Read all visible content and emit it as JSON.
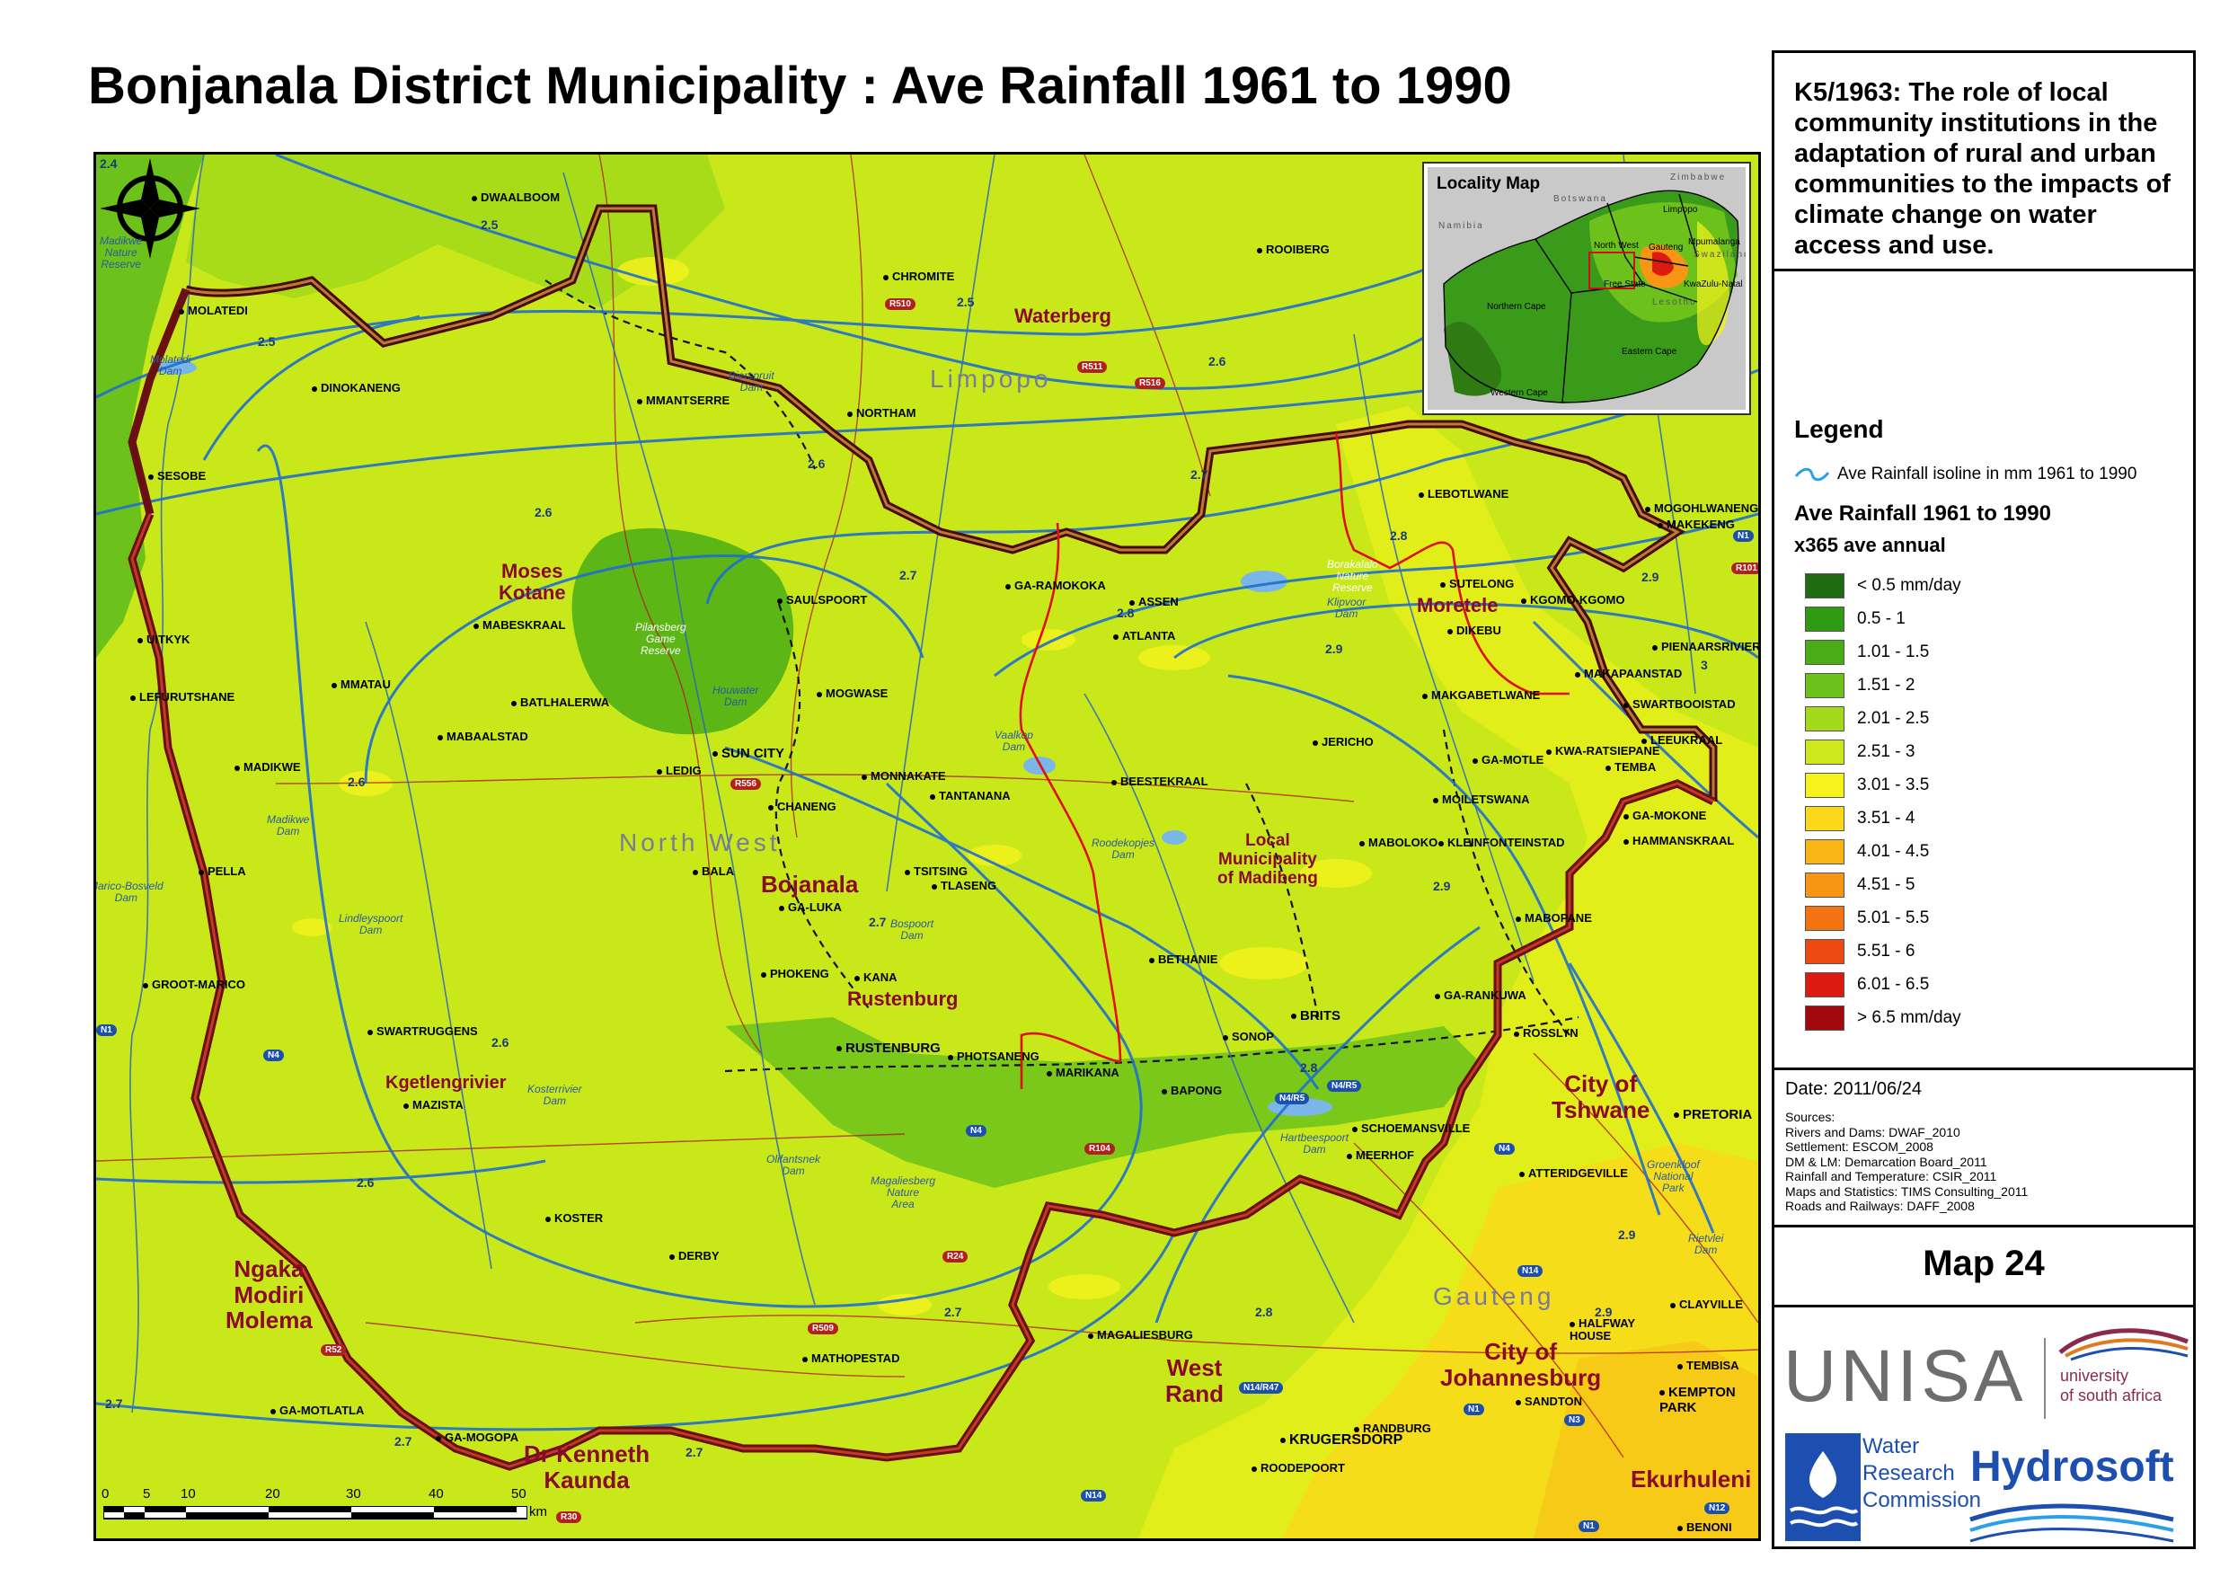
{
  "title": "Bonjanala District Municipality : Ave Rainfall 1961 to 1990",
  "project": "K5/1963: The role of local community institutions in the adaptation of rural and urban communities to the impacts of climate change on water access and use.",
  "legend": {
    "heading": "Legend",
    "isoline_label": "Ave Rainfall isoline in mm 1961 to 1990",
    "subtitle": "Ave Rainfall 1961 to 1990",
    "unit": "x365 ave annual",
    "classes": [
      {
        "label": "< 0.5 mm/day",
        "color": "#1f6b0f"
      },
      {
        "label": "0.5 - 1",
        "color": "#2f9a12"
      },
      {
        "label": "1.01 - 1.5",
        "color": "#48ad16"
      },
      {
        "label": "1.51 - 2",
        "color": "#6cc21a"
      },
      {
        "label": "2.01 - 2.5",
        "color": "#a2d91a"
      },
      {
        "label": "2.51 - 3",
        "color": "#cde81c"
      },
      {
        "label": "3.01 - 3.5",
        "color": "#f6f21c"
      },
      {
        "label": "3.51 - 4",
        "color": "#fbd81a"
      },
      {
        "label": "4.01 - 4.5",
        "color": "#f9b515"
      },
      {
        "label": "4.51 - 5",
        "color": "#f79514"
      },
      {
        "label": "5.01 - 5.5",
        "color": "#f37312"
      },
      {
        "label": "5.51 - 6",
        "color": "#ec4a10"
      },
      {
        "label": "6.01 - 6.5",
        "color": "#dd1a10"
      },
      {
        "label": "> 6.5 mm/day",
        "color": "#a0080e"
      }
    ]
  },
  "date": "Date: 2011/06/24",
  "sources": [
    "Sources:",
    "Rivers and Dams:  DWAF_2010",
    "Settlement: ESCOM_2008",
    "DM & LM: Demarcation Board_2011",
    "Rainfall and Temperature: CSIR_2011",
    "Maps and Statistics: TIMS Consulting_2011",
    "Roads and Railways: DAFF_2008"
  ],
  "map_number": "Map 24",
  "logos": {
    "unisa": "UNISA",
    "unisa_sub": [
      "university",
      "of south africa"
    ],
    "wrc": [
      "Water",
      "Research",
      "Commission"
    ],
    "hydrosoft": "Hydrosoft"
  },
  "inset": {
    "title": "Locality Map",
    "labels": [
      "Botswana",
      "Namibia",
      "Zimbabwe",
      "Limpopo",
      "Mpumalanga",
      "Swaziland",
      "North West",
      "Gauteng",
      "Free State",
      "KwaZulu-Natal",
      "Lesotho",
      "Northern Cape",
      "Eastern Cape",
      "Western Cape"
    ]
  },
  "scale": {
    "ticks": [
      "0",
      "5",
      "10",
      "20",
      "30",
      "40",
      "50"
    ],
    "unit": "km"
  },
  "isolines": [
    "2.4",
    "2.5",
    "2.5",
    "2.5",
    "2.6",
    "2.6",
    "2.6",
    "2.6",
    "2.6",
    "2.7",
    "2.7",
    "2.7",
    "2.7",
    "2.7",
    "2.7",
    "2.8",
    "2.8",
    "2.8",
    "2.8",
    "2.9",
    "2.9",
    "2.9",
    "2.9",
    "3",
    "2.6",
    "2.7",
    "2.9"
  ],
  "roads": [
    "R556",
    "R510",
    "R511",
    "R516",
    "N1",
    "N1",
    "N4",
    "N4",
    "N4",
    "N4/R5",
    "N4/R5",
    "R104",
    "R24",
    "R509",
    "R52",
    "N14/R47",
    "N14",
    "N14",
    "N1",
    "N3",
    "N12",
    "N1",
    "R101",
    "R30"
  ],
  "regions": [
    "Waterberg",
    "Moses\nKotane",
    "Moretele",
    "Bojanala",
    "Local\nMunicipality\nof Madibeng",
    "Rustenburg",
    "Kgetlengrivier",
    "City of\nTshwane",
    "Ngaka\nModiri\nMolema",
    "West\nRand",
    "City of\nJohannesburg",
    "Dr Kenneth\nKaunda",
    "Ekurhuleni"
  ],
  "provinces": [
    "Limpopo",
    "North West",
    "Gauteng"
  ],
  "places": [
    "DWAALBOOM",
    "MOLATEDI",
    "DINOKANENG",
    "CHROMITE",
    "ROOIBERG",
    "MMANTSERRE",
    "NORTHAM",
    "SESOBE",
    "UITKYK",
    "LEFURUTSHANE",
    "MMATAU",
    "MABESKRAAL",
    "BATLHALERWA",
    "MABAALSTAD",
    "SAULSPOORT",
    "MOGWASE",
    "SUN CITY",
    "LEDIG",
    "CHANENG",
    "MONNAKATE",
    "TANTANANA",
    "MADIKWE",
    "PELLA",
    "BALA",
    "GA-LUKA",
    "TSITSING",
    "TLASENG",
    "PHOKENG",
    "KANA",
    "RUSTENBURG",
    "PHOTSANENG",
    "GROOT-MARICO",
    "SWARTRUGGENS",
    "MAZISTA",
    "KOSTER",
    "DERBY",
    "MATHOPESTAD",
    "MAGALIESBURG",
    "GA-MOTLATLA",
    "GA-MOGOPA",
    "GA-RAMOKOKA",
    "ASSEN",
    "ATLANTA",
    "BEESTEKRAAL",
    "BETHANIE",
    "MARIKANA",
    "BAPONG",
    "SONOP",
    "BRITS",
    "LEBOTLWANE",
    "SUTELONG",
    "DIKEBU",
    "MAKGABETLWANE",
    "JERICHO",
    "GA-MOTLE",
    "MOILETSWANA",
    "MABOLOKO",
    "KLEINFONTEINSTAD",
    "KGOMO-KGOMO",
    "MOGOHLWANENG",
    "MAKEKENG",
    "PIENAARSRIVIER",
    "MAKAPAANSTAD",
    "SWARTBOOISTAD",
    "LEEUKRAAL",
    "KWA-RATSIEPANE",
    "TEMBA",
    "GA-MOKONE",
    "HAMMANSKRAAL",
    "MABOPANE",
    "GA-RANKUWA",
    "ROSSLYN",
    "SCHOEMANSVILLE",
    "MEERHOF",
    "ATTERIDGEVILLE",
    "PRETORIA",
    "CLAYVILLE",
    "HALFWAY\nHOUSE",
    "TEMBISA",
    "KEMPTON\nPARK",
    "SANDTON",
    "RANDBURG",
    "KRUGERSDORP",
    "ROODEPOORT",
    "BENONI"
  ],
  "water": [
    "Madikwe\nNature\nReserve",
    "Molatedi\nDam",
    "Bierspruit\nDam",
    "Pilansberg\nGame\nReserve",
    "Houwater\nDam",
    "Madikwe\nDam",
    "Marico-Bosveld\nDam",
    "Lindleyspoort\nDam",
    "Kosterrivier\nDam",
    "Vaalkop\nDam",
    "Roodekopjes\nDam",
    "Bospoort\nDam",
    "Olifantsnek\nDam",
    "Magaliesberg\nNature\nArea",
    "Borakalalo\nNature\nReserve",
    "Klipvoor\nDam",
    "Hartbeespoort\nDam",
    "Groenkloof\nNational\nPark",
    "Rietvlei\nDam"
  ]
}
